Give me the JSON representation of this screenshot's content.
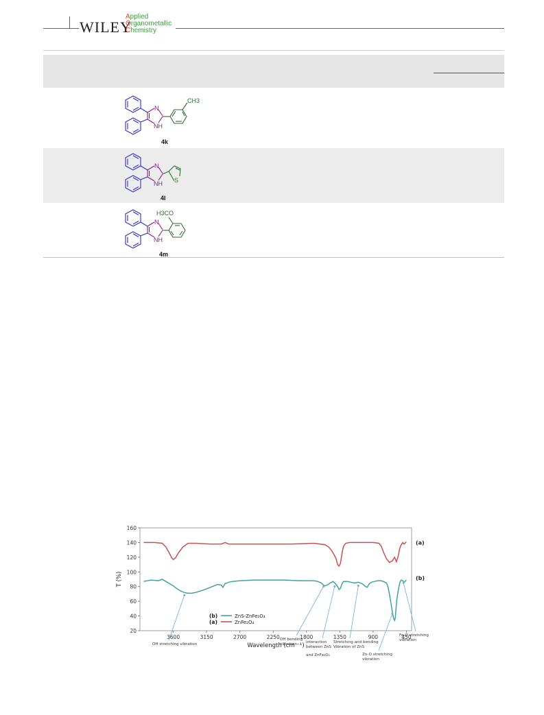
{
  "header": {
    "publisher": "WILEY",
    "journal_lines": [
      {
        "cap": "A",
        "rest": "pplied"
      },
      {
        "cap": "O",
        "rest": "rganometallic"
      },
      {
        "cap": "C",
        "rest": "hemistry"
      }
    ]
  },
  "table": {
    "rows": [
      {
        "compound": "4k",
        "substituent": "CH3"
      },
      {
        "compound": "4l",
        "substituent": "S"
      },
      {
        "compound": "4m",
        "substituent": "H3CO"
      }
    ],
    "imidazole_atoms": {
      "n": "N",
      "nh": "NH"
    }
  },
  "colors": {
    "phenyl": "#2f2fd0",
    "imidazole": "#8a1a8a",
    "substituent": "#2e6b2e",
    "series_a": "#c8504f",
    "series_b": "#3fa39a",
    "annotation_arrow": "#6aaedb"
  },
  "chart_data": {
    "type": "line",
    "xlabel": "Wavelength (cm ⁻¹)",
    "ylabel": "T (%)",
    "xlim": [
      4050,
      380
    ],
    "ylim": [
      20,
      160
    ],
    "x_ticks": [
      3600,
      3150,
      2700,
      2250,
      1800,
      1350,
      900,
      450
    ],
    "y_ticks": [
      20,
      40,
      60,
      80,
      100,
      120,
      140,
      160
    ],
    "grid": false,
    "legend": {
      "placement": "bottom-center",
      "entries": [
        {
          "tag": "(b)",
          "label": "ZnS-ZnFe₂O₄"
        },
        {
          "tag": "(a)",
          "label": "ZnFe₂O₄"
        }
      ]
    },
    "series": [
      {
        "tag": "(a)",
        "x": [
          4000,
          3850,
          3750,
          3700,
          3650,
          3620,
          3600,
          3570,
          3530,
          3470,
          3400,
          3300,
          3100,
          2950,
          2900,
          2850,
          2700,
          2400,
          2000,
          1700,
          1550,
          1500,
          1460,
          1430,
          1400,
          1380,
          1360,
          1340,
          1320,
          1300,
          1270,
          1220,
          1100,
          900,
          820,
          790,
          760,
          720,
          680,
          640,
          610,
          585,
          560,
          540,
          520,
          500,
          480,
          460,
          450
        ],
        "values": [
          140,
          140,
          139,
          134,
          125,
          119,
          117,
          119,
          126,
          134,
          139,
          139,
          138,
          138,
          140,
          138,
          138,
          138,
          138,
          139,
          137,
          134,
          129,
          124,
          118,
          110,
          108,
          112,
          126,
          135,
          139,
          140,
          140,
          140,
          139,
          135,
          127,
          118,
          113,
          115,
          120,
          114,
          122,
          132,
          137,
          140,
          138,
          140,
          141
        ]
      },
      {
        "tag": "(b)",
        "x": [
          4000,
          3900,
          3800,
          3750,
          3700,
          3650,
          3600,
          3550,
          3500,
          3450,
          3400,
          3350,
          3300,
          3200,
          3100,
          3000,
          2950,
          2930,
          2900,
          2850,
          2800,
          2700,
          2500,
          2300,
          2100,
          1900,
          1800,
          1700,
          1650,
          1600,
          1560,
          1520,
          1480,
          1440,
          1410,
          1380,
          1360,
          1340,
          1320,
          1300,
          1250,
          1200,
          1150,
          1100,
          1050,
          1000,
          980,
          950,
          920,
          880,
          840,
          800,
          760,
          720,
          700,
          680,
          660,
          640,
          630,
          620,
          610,
          600,
          590,
          580,
          560,
          540,
          520,
          500,
          480,
          460,
          450
        ],
        "values": [
          87,
          89,
          88,
          90,
          87,
          84,
          81,
          77,
          74,
          72,
          71,
          71,
          72,
          75,
          79,
          83,
          82,
          79,
          84,
          86,
          87,
          88,
          89,
          89,
          89,
          88,
          88,
          88,
          87,
          85,
          81,
          82,
          85,
          87,
          84,
          80,
          76,
          78,
          84,
          87,
          87,
          86,
          85,
          86,
          84,
          80,
          79,
          84,
          86,
          87,
          88,
          88,
          87,
          85,
          80,
          70,
          58,
          46,
          40,
          36,
          34,
          38,
          50,
          62,
          75,
          85,
          89,
          88,
          86,
          88,
          89
        ]
      }
    ],
    "annotations": [
      {
        "text": [
          "OH stretching vibration"
        ],
        "target": [
          3450,
          71
        ]
      },
      {
        "text": [
          "OH bending",
          "vibration"
        ],
        "target": [
          1570,
          83
        ]
      },
      {
        "text": [
          "interaction",
          "between ZnS"
        ],
        "target": [
          1420,
          83
        ]
      },
      {
        "text": [
          "and ZnFe₂O₄"
        ],
        "target": null
      },
      {
        "text": [
          "Stretching and bending",
          "Vibration of ZnS"
        ],
        "target": [
          1100,
          84
        ]
      },
      {
        "text": [
          "Zn-O stretching",
          "vibration"
        ],
        "target": [
          640,
          46
        ]
      },
      {
        "text": [
          "Fe-O stretching",
          "vibration"
        ],
        "target": [
          490,
          88
        ]
      }
    ],
    "series_labels": [
      {
        "tag": "(a)",
        "position": "right",
        "near": 140
      },
      {
        "tag": "(b)",
        "position": "right",
        "near": 92
      }
    ]
  }
}
